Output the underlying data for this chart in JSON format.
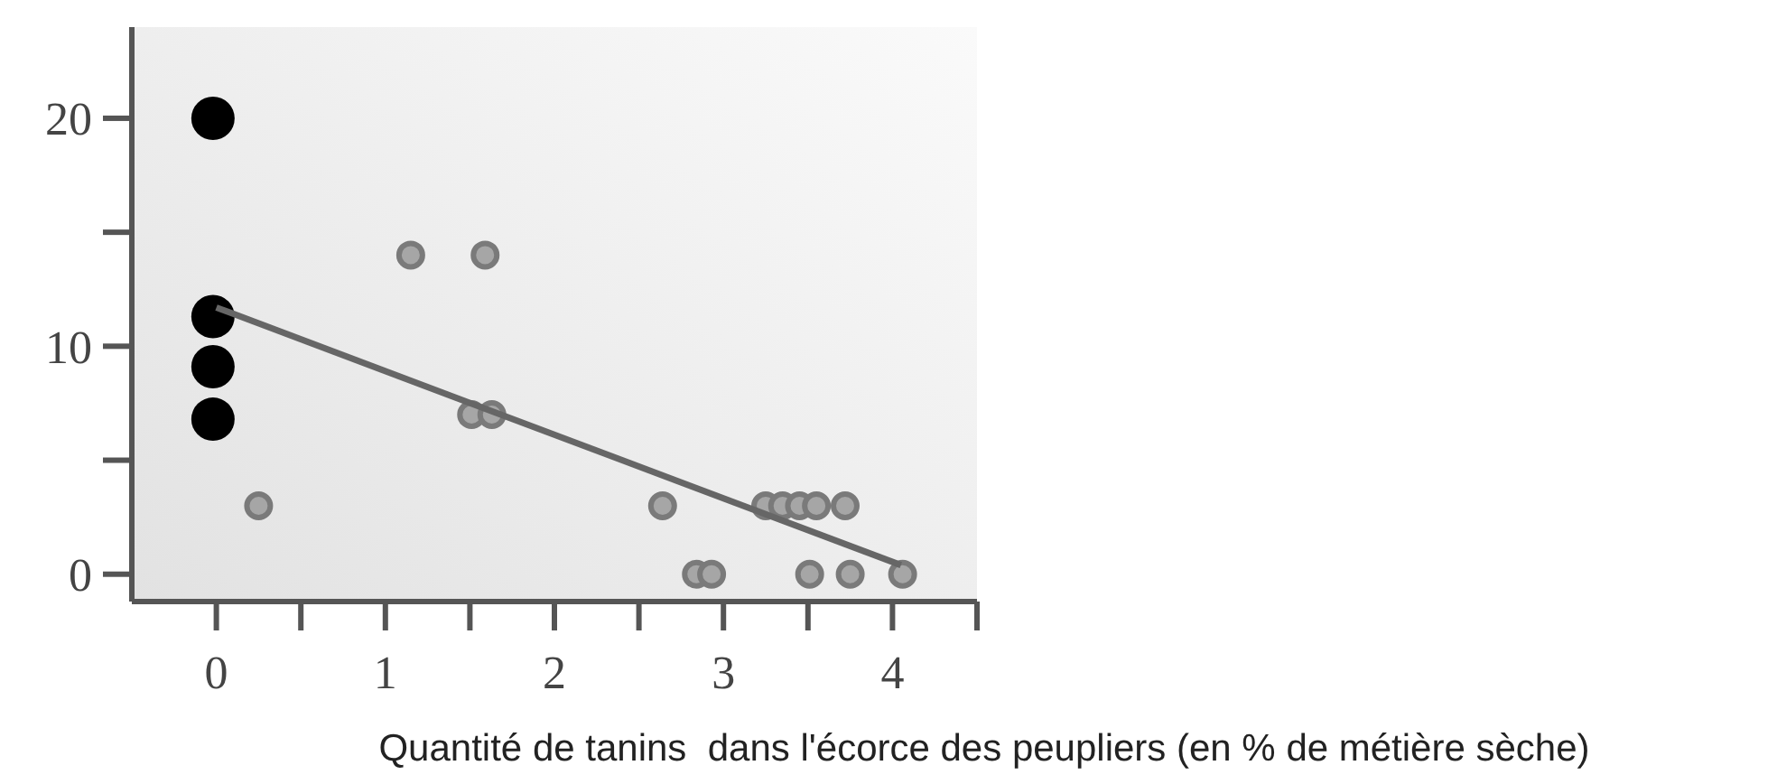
{
  "chart_data": {
    "type": "scatter",
    "xlabel": "Quantité de tanins  dans l'écorce des peupliers (en % de métière sèche)",
    "xlim": [
      -0.5,
      4.5
    ],
    "ylim": [
      -1.2,
      24
    ],
    "xticks": [
      0,
      {
        "value": 0.5,
        "label": null
      },
      1,
      {
        "value": 1.5,
        "label": null
      },
      2,
      {
        "value": 2.5,
        "label": null
      },
      3,
      {
        "value": 3.5,
        "label": null
      },
      4,
      {
        "value": 4.5,
        "label": null
      }
    ],
    "yticks": [
      0,
      {
        "value": 5,
        "label": null
      },
      10,
      {
        "value": 15,
        "label": null
      },
      20
    ],
    "marker": "circle",
    "grid": false,
    "series": [
      {
        "color": "#a6a6a6",
        "x": [
          0.25,
          1.15,
          1.59,
          1.51,
          1.63,
          2.64,
          2.84,
          2.93,
          3.25,
          3.35,
          3.45,
          3.55,
          3.72,
          3.51,
          3.75,
          4.06
        ],
        "values": [
          3,
          14,
          14,
          7,
          7,
          3,
          0,
          0,
          3,
          3,
          3,
          3,
          3,
          0,
          0,
          0
        ]
      },
      {
        "color": "#000000",
        "x": [
          -0.02,
          -0.02,
          -0.02,
          -0.02
        ],
        "values": [
          20,
          11.3,
          9.1,
          6.8
        ]
      },
      {
        "type": "line",
        "marker": "none",
        "color": "#666666",
        "x": [
          0,
          4.05
        ],
        "values": [
          11.7,
          0.4
        ]
      }
    ]
  }
}
